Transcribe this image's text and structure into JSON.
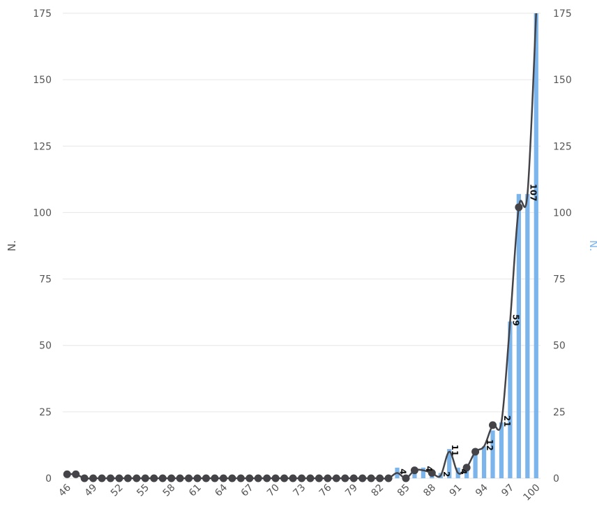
{
  "chart_data": {
    "type": "bar+line",
    "title": "",
    "xlabel": "",
    "ylabel_left": "N.",
    "ylabel_right": "N.",
    "ylim": [
      0,
      175
    ],
    "yticks": [
      0,
      25,
      50,
      75,
      100,
      125,
      150,
      175
    ],
    "grid": true,
    "legend": "none",
    "x": [
      46,
      47,
      48,
      49,
      50,
      51,
      52,
      53,
      54,
      55,
      56,
      57,
      58,
      59,
      60,
      61,
      62,
      63,
      64,
      65,
      66,
      67,
      68,
      69,
      70,
      71,
      72,
      73,
      74,
      75,
      76,
      77,
      78,
      79,
      80,
      81,
      82,
      83,
      84,
      85,
      86,
      87,
      88,
      89,
      90,
      91,
      92,
      93,
      94,
      95,
      96,
      97,
      98,
      99,
      100
    ],
    "x_tick_labels": [
      "46",
      "49",
      "52",
      "55",
      "58",
      "61",
      "64",
      "67",
      "70",
      "73",
      "76",
      "79",
      "82",
      "85",
      "88",
      "91",
      "94",
      "97",
      "100"
    ],
    "series": [
      {
        "type": "bar",
        "color": "#7cb5ec",
        "values": [
          0,
          0,
          0,
          0,
          0,
          0,
          0,
          0,
          0,
          0,
          0,
          0,
          0,
          0,
          0,
          0,
          0,
          0,
          0,
          0,
          0,
          0,
          0,
          0,
          0,
          0,
          0,
          0,
          0,
          0,
          0,
          0,
          0,
          0,
          0,
          0,
          0,
          0,
          4,
          0,
          4,
          4,
          2,
          2,
          11,
          4,
          4,
          10,
          12,
          18,
          21,
          59,
          107,
          107,
          175
        ]
      },
      {
        "type": "line",
        "color": "#434348",
        "values": [
          1.5,
          1.5,
          0,
          0,
          0,
          0,
          0,
          0,
          0,
          0,
          0,
          0,
          0,
          0,
          0,
          0,
          0,
          0,
          0,
          0,
          0,
          0,
          0,
          0,
          0,
          0,
          0,
          0,
          0,
          0,
          0,
          0,
          0,
          0,
          0,
          0,
          0,
          0,
          2,
          0,
          3,
          3,
          2,
          1,
          10,
          2,
          4,
          10,
          12,
          20,
          21,
          59,
          102,
          107,
          175
        ]
      }
    ],
    "data_labels": [
      {
        "x": 84,
        "text": "4"
      },
      {
        "x": 87,
        "text": "4"
      },
      {
        "x": 89,
        "text": "2"
      },
      {
        "x": 90,
        "text": "11"
      },
      {
        "x": 91,
        "text": "4"
      },
      {
        "x": 94,
        "text": "12"
      },
      {
        "x": 96,
        "text": "21"
      },
      {
        "x": 97,
        "text": "59"
      },
      {
        "x": 99,
        "text": "107"
      }
    ]
  }
}
